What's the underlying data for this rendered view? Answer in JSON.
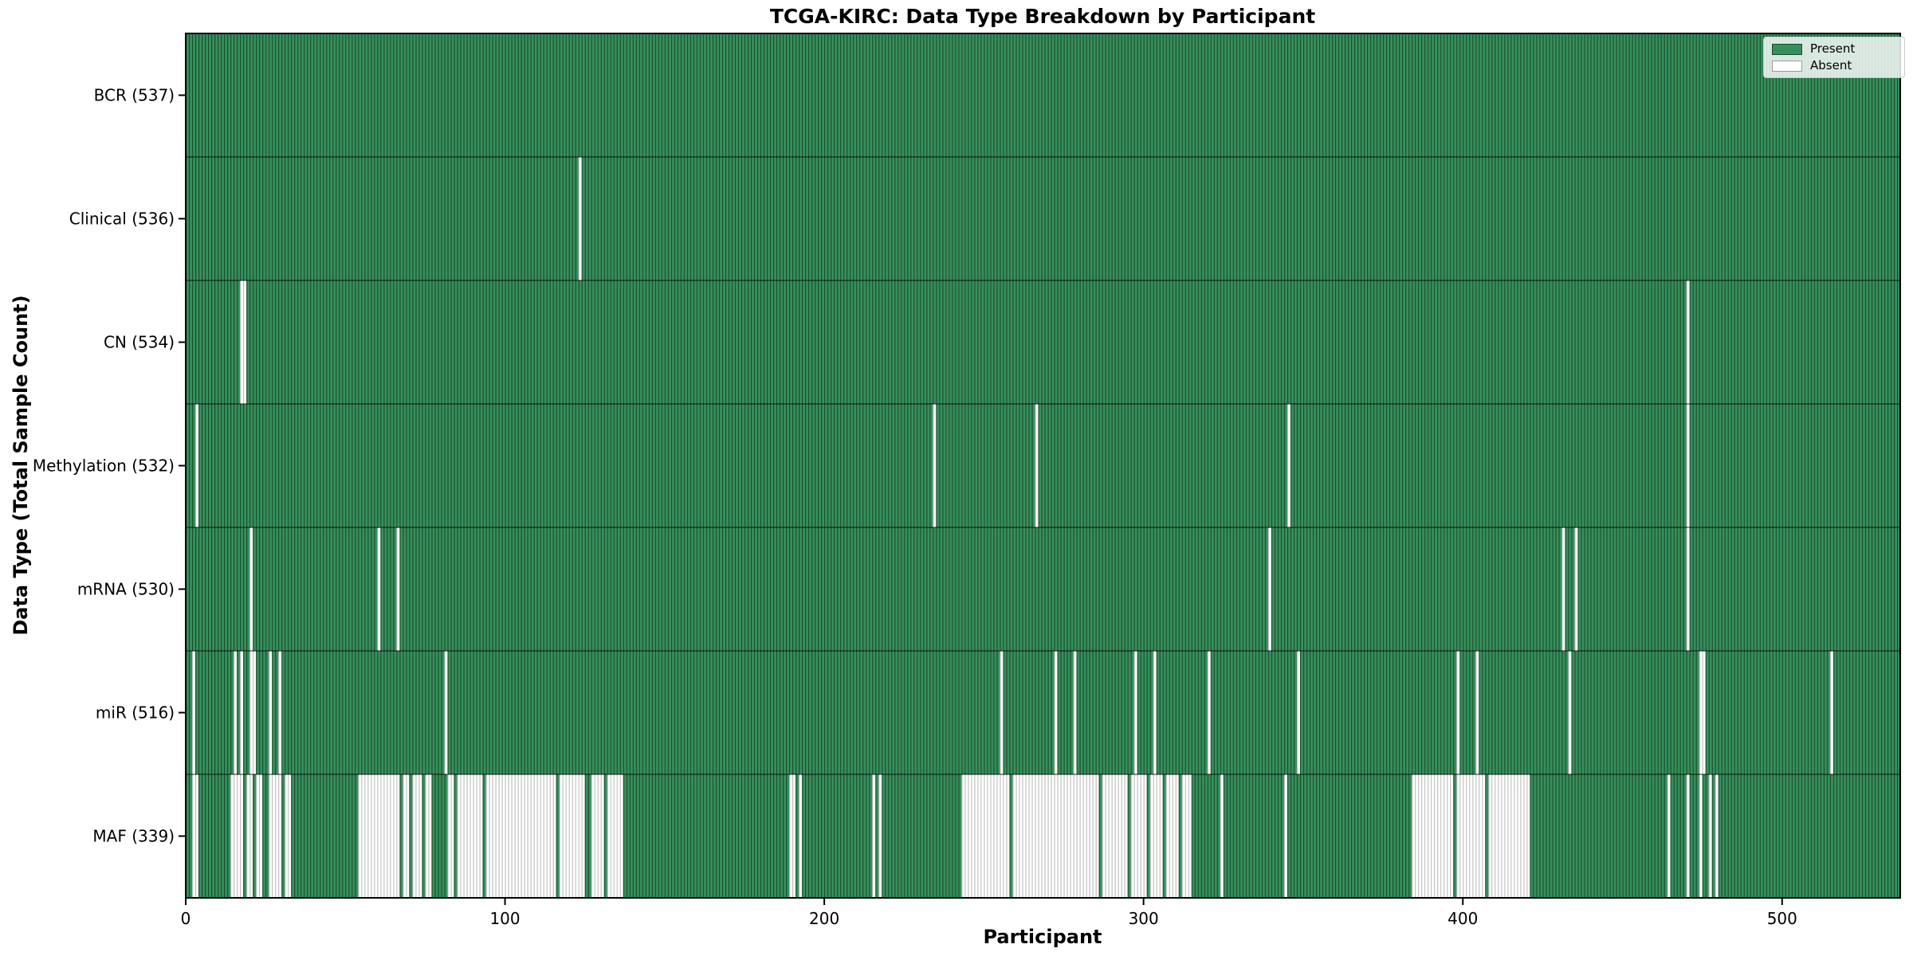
{
  "chart_data": {
    "type": "heatmap",
    "title": "TCGA-KIRC: Data Type Breakdown by Participant",
    "xlabel": "Participant",
    "ylabel": "Data Type (Total Sample Count)",
    "n_participants": 537,
    "x_ticks": [
      0,
      100,
      200,
      300,
      400,
      500
    ],
    "legend": [
      {
        "label": "Present",
        "value": "present"
      },
      {
        "label": "Absent",
        "value": "absent"
      }
    ],
    "colors": {
      "present_fill": "#36905c",
      "present_edge": "#1c4a2e",
      "absent_fill": "#ffffff",
      "absent_edge": "#bdbdbd",
      "axis_line": "#000000"
    },
    "layout": {
      "grid": false,
      "legend_position": "upper right"
    },
    "rows": [
      {
        "label": "BCR (537)",
        "data_type": "BCR",
        "total": 537,
        "absent_ranges": []
      },
      {
        "label": "Clinical (536)",
        "data_type": "Clinical",
        "total": 536,
        "absent_ranges": [
          [
            123,
            123
          ]
        ]
      },
      {
        "label": "CN (534)",
        "data_type": "CN",
        "total": 534,
        "absent_ranges": [
          [
            17,
            18
          ],
          [
            470,
            470
          ]
        ]
      },
      {
        "label": "Methylation (532)",
        "data_type": "Methylation",
        "total": 532,
        "absent_ranges": [
          [
            3,
            3
          ],
          [
            234,
            234
          ],
          [
            266,
            266
          ],
          [
            345,
            345
          ],
          [
            470,
            470
          ]
        ]
      },
      {
        "label": "mRNA (530)",
        "data_type": "mRNA",
        "total": 530,
        "absent_ranges": [
          [
            20,
            20
          ],
          [
            60,
            60
          ],
          [
            66,
            66
          ],
          [
            339,
            339
          ],
          [
            431,
            431
          ],
          [
            435,
            435
          ],
          [
            470,
            470
          ]
        ]
      },
      {
        "label": "miR (516)",
        "data_type": "miR",
        "total": 516,
        "absent_ranges": [
          [
            2,
            2
          ],
          [
            15,
            15
          ],
          [
            17,
            17
          ],
          [
            20,
            21
          ],
          [
            26,
            26
          ],
          [
            29,
            29
          ],
          [
            81,
            81
          ],
          [
            255,
            255
          ],
          [
            272,
            272
          ],
          [
            278,
            278
          ],
          [
            297,
            297
          ],
          [
            303,
            303
          ],
          [
            320,
            320
          ],
          [
            348,
            348
          ],
          [
            398,
            398
          ],
          [
            404,
            404
          ],
          [
            433,
            433
          ],
          [
            474,
            475
          ],
          [
            515,
            515
          ]
        ]
      },
      {
        "label": "MAF (339)",
        "data_type": "MAF",
        "total": 339,
        "absent_ranges": [
          [
            2,
            3
          ],
          [
            14,
            17
          ],
          [
            19,
            20
          ],
          [
            22,
            23
          ],
          [
            26,
            29
          ],
          [
            31,
            32
          ],
          [
            54,
            66
          ],
          [
            68,
            69
          ],
          [
            71,
            73
          ],
          [
            75,
            76
          ],
          [
            82,
            83
          ],
          [
            85,
            92
          ],
          [
            94,
            115
          ],
          [
            117,
            124
          ],
          [
            127,
            130
          ],
          [
            132,
            136
          ],
          [
            189,
            190
          ],
          [
            192,
            192
          ],
          [
            215,
            215
          ],
          [
            217,
            217
          ],
          [
            243,
            257
          ],
          [
            259,
            285
          ],
          [
            287,
            294
          ],
          [
            296,
            300
          ],
          [
            302,
            305
          ],
          [
            307,
            310
          ],
          [
            312,
            314
          ],
          [
            324,
            324
          ],
          [
            344,
            344
          ],
          [
            384,
            396
          ],
          [
            398,
            406
          ],
          [
            408,
            420
          ],
          [
            464,
            464
          ],
          [
            470,
            470
          ],
          [
            474,
            474
          ],
          [
            477,
            477
          ],
          [
            479,
            479
          ]
        ]
      }
    ]
  }
}
